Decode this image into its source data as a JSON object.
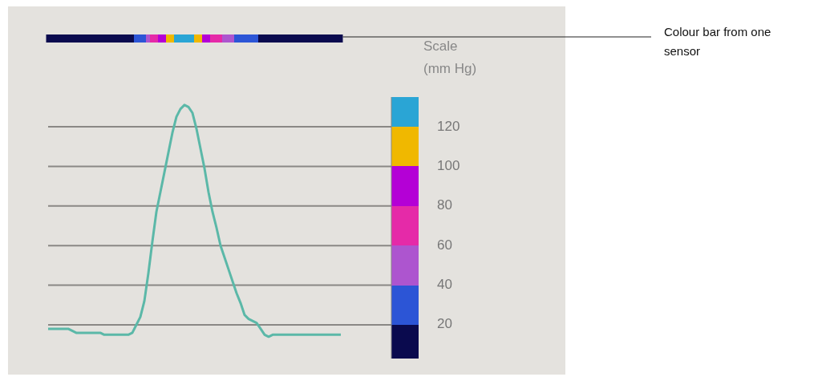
{
  "chart_data": {
    "type": "line",
    "ylabel": "Scale (mm Hg)",
    "annotations": [
      "Colour bar from one sensor"
    ],
    "ylim": [
      3,
      135
    ],
    "yticks": [
      20,
      40,
      60,
      80,
      100,
      120
    ],
    "grid": "y",
    "categories": [
      null,
      null,
      null,
      null,
      null,
      null,
      null,
      null,
      null,
      null,
      null,
      null,
      null,
      null,
      null,
      null,
      null,
      null,
      null,
      null,
      null,
      null,
      null,
      null,
      null,
      null,
      null,
      null,
      null,
      null,
      null,
      null,
      null,
      null,
      null,
      null,
      null,
      null,
      null,
      null,
      null,
      null,
      null,
      null,
      null,
      null,
      null,
      null,
      null,
      null,
      null,
      null,
      null,
      null,
      null,
      null,
      null,
      null,
      null,
      null,
      null,
      null,
      null,
      null,
      null,
      null,
      null,
      null,
      null,
      null,
      null,
      null,
      null,
      null,
      null,
      null,
      null,
      null,
      null,
      null,
      null,
      null,
      null,
      null,
      null,
      null
    ],
    "series": [
      {
        "color": "#5bb8a8",
        "values": [
          18,
          18,
          18,
          18,
          18,
          18,
          17,
          16,
          16,
          16,
          16,
          16,
          16,
          16,
          15,
          15,
          15,
          15,
          15,
          15,
          15,
          16,
          20,
          24,
          32,
          46,
          62,
          77,
          87,
          97,
          107,
          117,
          125,
          129,
          131,
          130,
          127,
          119,
          109,
          99,
          87,
          77,
          69,
          60,
          54,
          48,
          42,
          36,
          31,
          25,
          23,
          22,
          21,
          18,
          15,
          14,
          15,
          15,
          15,
          15,
          15,
          15,
          15,
          15,
          15,
          15,
          15,
          15,
          15,
          15,
          15,
          15,
          15,
          15,
          null,
          null,
          null,
          null,
          null,
          null,
          null,
          null,
          null,
          null,
          null,
          null
        ]
      }
    ]
  }
}
